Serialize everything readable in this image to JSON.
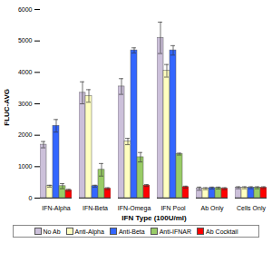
{
  "chart_data": {
    "type": "bar",
    "x_label": "IFN Type (100U/ml)",
    "y_label": "FLUC-AVG",
    "categories": [
      "IFN-Alpha",
      "IFN-Beta",
      "IFN-Omega",
      "IFN Pool",
      "Ab Only",
      "Cells Only"
    ],
    "series": [
      {
        "name": "No Ab",
        "color": "#ccc0da",
        "values": [
          1700,
          3350,
          3550,
          5100,
          300,
          330
        ],
        "errors": [
          100,
          350,
          250,
          500,
          50,
          30
        ]
      },
      {
        "name": "Anti-Alpha",
        "color": "#ffffc0",
        "values": [
          380,
          3250,
          1800,
          4050,
          300,
          330
        ],
        "errors": [
          30,
          200,
          100,
          200,
          30,
          30
        ]
      },
      {
        "name": "Anti-Beta",
        "color": "#3366ff",
        "values": [
          2300,
          380,
          4700,
          4700,
          320,
          330
        ],
        "errors": [
          200,
          30,
          80,
          150,
          30,
          30
        ]
      },
      {
        "name": "Anti-IFNAR",
        "color": "#99cc66",
        "values": [
          380,
          900,
          1300,
          1400,
          320,
          330
        ],
        "errors": [
          80,
          200,
          150,
          30,
          30,
          30
        ]
      },
      {
        "name": "Ab Cocktail",
        "color": "#ff0000",
        "values": [
          250,
          300,
          400,
          350,
          300,
          330
        ],
        "errors": [
          30,
          30,
          30,
          30,
          30,
          30
        ]
      }
    ],
    "ylim": [
      0,
      6000
    ],
    "yticks": [
      0,
      1000,
      2000,
      3000,
      4000,
      5000,
      6000
    ],
    "grid": false,
    "legend": "bottom"
  }
}
